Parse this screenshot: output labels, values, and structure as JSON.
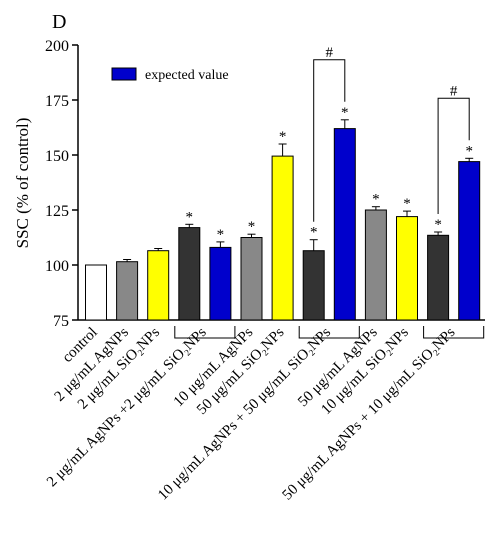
{
  "panel_label": "D",
  "colors": {
    "white_bar": "#ffffff",
    "gray_bar": "#888888",
    "yellow_bar": "#ffff00",
    "black_bar": "#333333",
    "blue_bar": "#0000cc",
    "axis": "#000000"
  },
  "chart_data": {
    "type": "bar",
    "ylabel": "SSC (% of control)",
    "ylim": [
      75,
      200
    ],
    "yticks": [
      75,
      100,
      125,
      150,
      175,
      200
    ],
    "legend": {
      "label": "expected value",
      "color": "blue",
      "placement": "top-left"
    },
    "bars": [
      {
        "value": 100,
        "error": 0,
        "color": "white",
        "star": ""
      },
      {
        "value": 101.5,
        "error": 1.0,
        "color": "gray",
        "star": ""
      },
      {
        "value": 106.5,
        "error": 1.0,
        "color": "yellow",
        "star": ""
      },
      {
        "value": 117,
        "error": 1.5,
        "color": "black",
        "star": "*"
      },
      {
        "value": 108,
        "error": 2.5,
        "color": "blue",
        "star": "*"
      },
      {
        "value": 112.5,
        "error": 1.5,
        "color": "gray",
        "star": "*"
      },
      {
        "value": 149.5,
        "error": 5.5,
        "color": "yellow",
        "star": "*"
      },
      {
        "value": 106.5,
        "error": 5.0,
        "color": "black",
        "star": "*"
      },
      {
        "value": 162,
        "error": 4.0,
        "color": "blue",
        "star": "*"
      },
      {
        "value": 125,
        "error": 1.5,
        "color": "gray",
        "star": "*"
      },
      {
        "value": 122,
        "error": 2.5,
        "color": "yellow",
        "star": "*"
      },
      {
        "value": 113.5,
        "error": 1.5,
        "color": "black",
        "star": "*"
      },
      {
        "value": 147,
        "error": 1.5,
        "color": "blue",
        "star": "*"
      }
    ],
    "x_labels": [
      {
        "text": "control",
        "bar": 0
      },
      {
        "text": "2 μg/mL AgNPs",
        "bar": 1
      },
      {
        "text": "2 μg/mL SiO₂NPs",
        "bar": 2
      },
      {
        "text": "2 μg/mL AgNPs +2 μg/mL SiO₂NPs",
        "bar": 3.5
      },
      {
        "text": "10 μg/mL AgNPs",
        "bar": 5
      },
      {
        "text": "50 μg/mL SiO₂NPs",
        "bar": 6
      },
      {
        "text": "10 μg/mL AgNPs + 50 μg/mL SiO₂NPs",
        "bar": 7.5
      },
      {
        "text": "50 μg/mL AgNPs",
        "bar": 9
      },
      {
        "text": "10 μg/mL SiO₂NPs",
        "bar": 10
      },
      {
        "text": "50 μg/mL AgNPs + 10 μg/mL SiO₂NPs",
        "bar": 11.5
      }
    ],
    "group_brackets": [
      {
        "from_bar": 3,
        "to_bar": 4
      },
      {
        "from_bar": 7,
        "to_bar": 8
      },
      {
        "from_bar": 11,
        "to_bar": 12
      }
    ],
    "significance": [
      {
        "from_bar": 7,
        "to_bar": 8,
        "label": "#"
      },
      {
        "from_bar": 11,
        "to_bar": 12,
        "label": "#"
      }
    ]
  }
}
